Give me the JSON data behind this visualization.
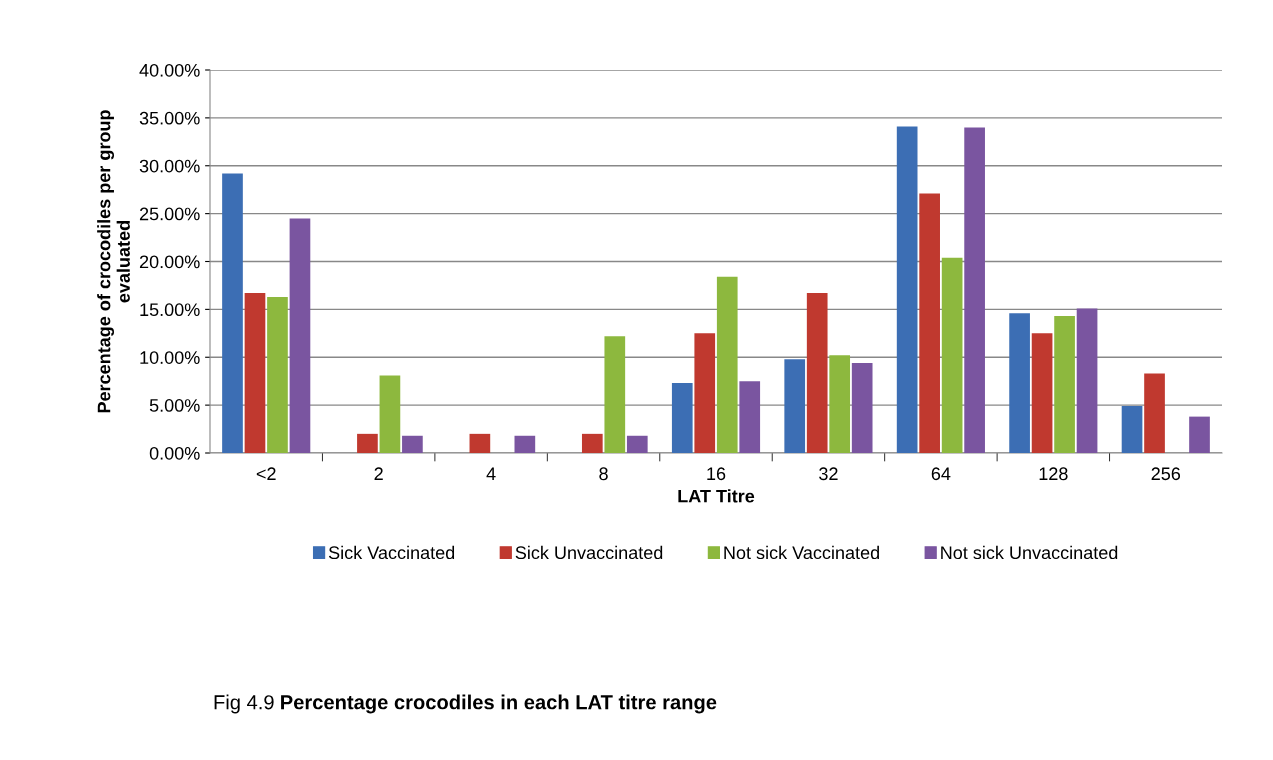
{
  "chart_data": {
    "type": "bar",
    "xlabel": "LAT Titre",
    "ylabel": "Percentage of crocodiles per group\nevaluated",
    "categories": [
      "<2",
      "2",
      "4",
      "8",
      "16",
      "32",
      "64",
      "128",
      "256"
    ],
    "series": [
      {
        "name": "Sick Vaccinated",
        "color": "#3c6eb4",
        "values": [
          29.2,
          0,
          0,
          0,
          7.3,
          9.8,
          34.1,
          14.6,
          4.9
        ]
      },
      {
        "name": "Sick Unvaccinated",
        "color": "#c0392f",
        "values": [
          16.7,
          2.0,
          2.0,
          2.0,
          12.5,
          16.7,
          27.1,
          12.5,
          8.3
        ]
      },
      {
        "name": "Not sick Vaccinated",
        "color": "#8db83e",
        "values": [
          16.3,
          8.1,
          0,
          12.2,
          18.4,
          10.2,
          20.4,
          14.3,
          0
        ]
      },
      {
        "name": "Not sick Unvaccinated",
        "color": "#7a55a0",
        "values": [
          24.5,
          1.8,
          1.8,
          1.8,
          7.5,
          9.4,
          34.0,
          15.1,
          3.8
        ]
      }
    ],
    "ylim": [
      0,
      40
    ],
    "yticks": [
      {
        "value": 0,
        "label": "0.00%"
      },
      {
        "value": 5,
        "label": "5.00%"
      },
      {
        "value": 10,
        "label": "10.00%"
      },
      {
        "value": 15,
        "label": "15.00%"
      },
      {
        "value": 20,
        "label": "20.00%"
      },
      {
        "value": 25,
        "label": "25.00%"
      },
      {
        "value": 30,
        "label": "30.00%"
      },
      {
        "value": 35,
        "label": "35.00%"
      },
      {
        "value": 40,
        "label": "40.00%"
      }
    ],
    "grid": "y",
    "legend": "bottom",
    "annotations": [
      "Fig 4.9",
      "Percentage crocodiles in each LAT titre range"
    ]
  }
}
